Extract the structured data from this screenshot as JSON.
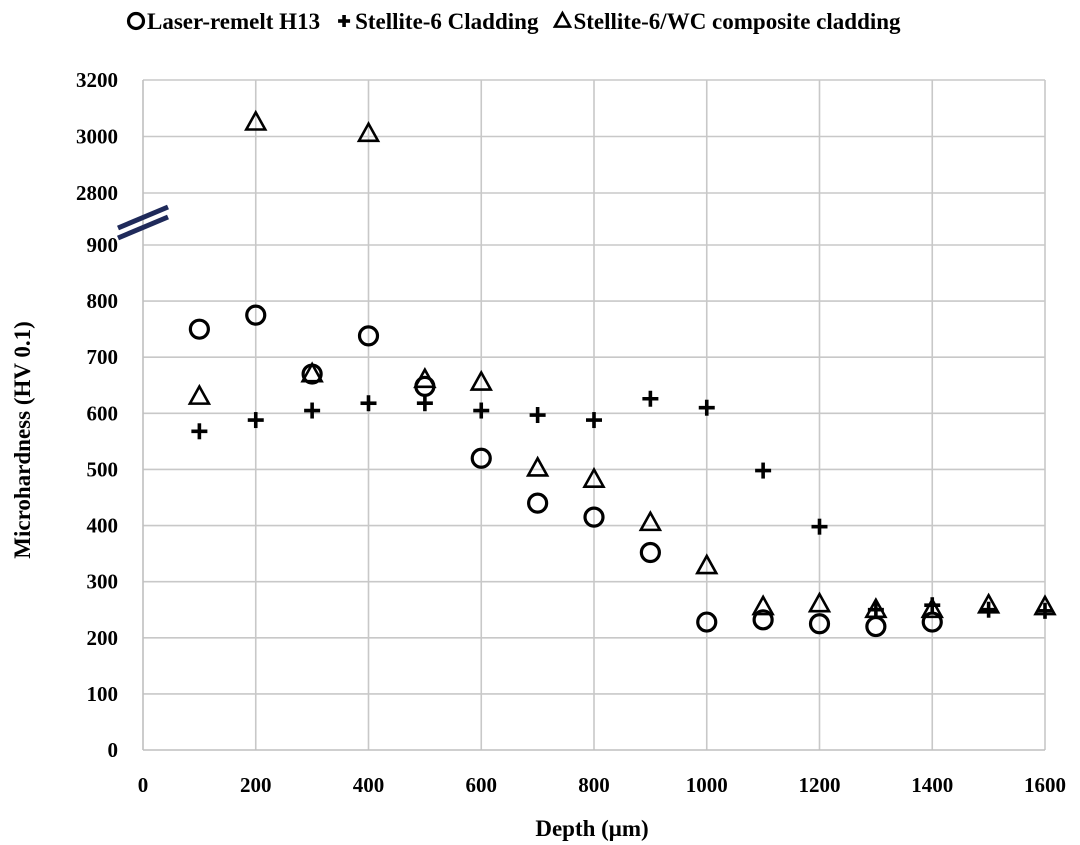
{
  "chart_data": {
    "type": "scatter",
    "title": "",
    "xlabel": "Depth  (μm)",
    "ylabel": "Microhardness  (HV  0.1)",
    "xlim": [
      0,
      1600
    ],
    "x_ticks": [
      0,
      200,
      400,
      600,
      800,
      1000,
      1200,
      1400,
      1600
    ],
    "y_ticks_lower": [
      0,
      100,
      200,
      300,
      400,
      500,
      600,
      700,
      800,
      900
    ],
    "y_ticks_upper": [
      2800,
      3000,
      3200
    ],
    "y_axis_break": {
      "lower_range": [
        0,
        900
      ],
      "upper_range": [
        2800,
        3200
      ]
    },
    "grid": true,
    "legend_position": "top",
    "series": [
      {
        "name": "Laser-remelt H13",
        "marker": "circle",
        "x": [
          100,
          200,
          300,
          400,
          500,
          600,
          700,
          800,
          900,
          1000,
          1100,
          1200,
          1300,
          1400
        ],
        "y": [
          750,
          775,
          670,
          738,
          648,
          520,
          440,
          415,
          352,
          228,
          232,
          225,
          220,
          228
        ]
      },
      {
        "name": "Stellite-6 Cladding",
        "marker": "plus",
        "x": [
          100,
          200,
          300,
          400,
          500,
          600,
          700,
          800,
          900,
          1000,
          1100,
          1200,
          1300,
          1400,
          1500,
          1600
        ],
        "y": [
          568,
          588,
          605,
          618,
          618,
          605,
          597,
          588,
          626,
          610,
          498,
          398,
          250,
          258,
          250,
          248
        ]
      },
      {
        "name": "Stellite-6/WC composite cladding",
        "marker": "triangle",
        "x": [
          100,
          200,
          300,
          400,
          500,
          600,
          700,
          800,
          900,
          1000,
          1100,
          1200,
          1300,
          1400,
          1500,
          1600
        ],
        "y": [
          630,
          3050,
          670,
          3010,
          660,
          655,
          502,
          482,
          405,
          328,
          255,
          260,
          250,
          250,
          258,
          255
        ]
      }
    ]
  }
}
